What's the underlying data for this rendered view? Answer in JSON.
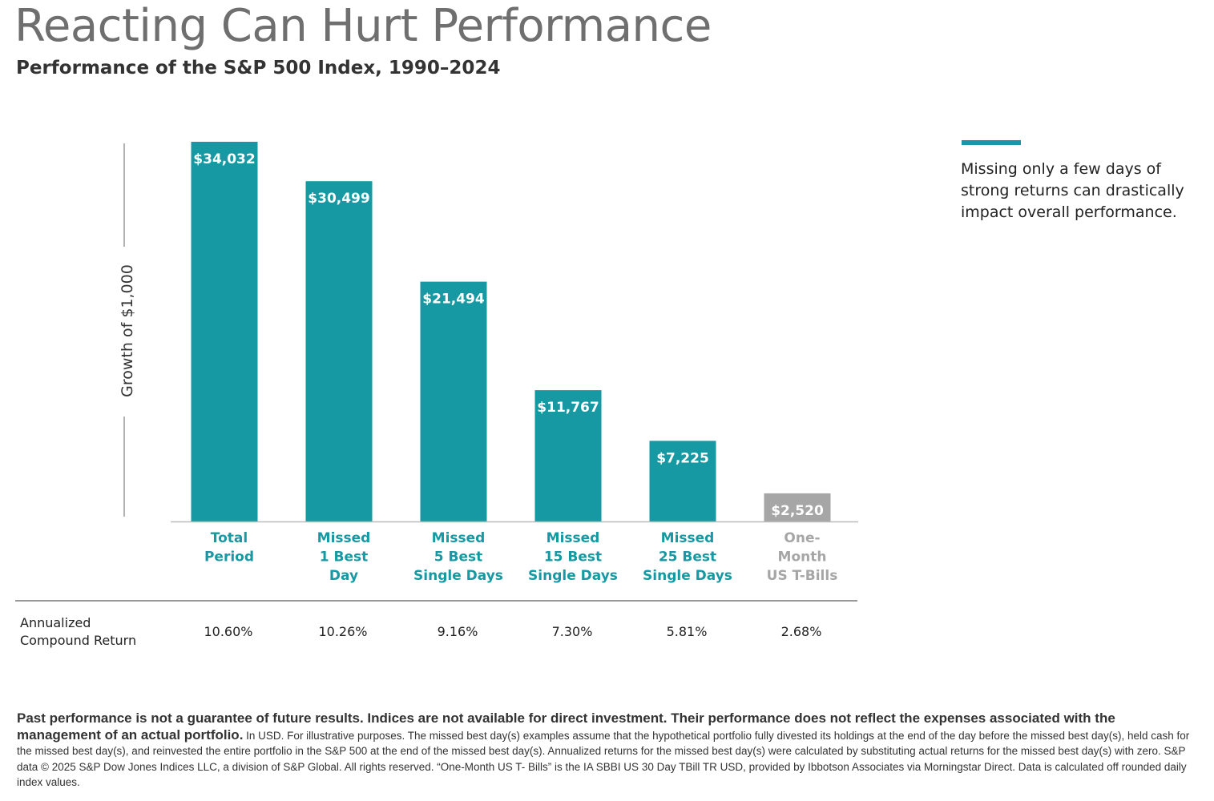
{
  "title": "Reacting Can Hurt Performance",
  "subtitle": "Performance of the S&P 500 Index, 1990–2024",
  "colors": {
    "accent": "#1699a2",
    "muted": "#a6a6a6",
    "axis": "#999999"
  },
  "callout": {
    "text": "Missing only a few days of strong returns can drastically impact overall performance."
  },
  "returns_label": "Annualized Compound Return",
  "footnote": {
    "bold": "Past performance is not a guarantee of future results. Indices are not available for direct investment. Their performance does not reflect the expenses associated with the management of an actual portfolio.",
    "body": " In USD. For illustrative purposes. The missed best day(s) examples assume that the hypothetical portfolio fully divested its holdings at the end of the day before the missed best day(s), held cash for the missed best day(s), and reinvested the entire portfolio in the S&P 500 at the end of the missed best day(s). Annualized returns for the missed best day(s) were calculated by substituting actual returns for the missed best day(s) with zero. S&P data © 2025 S&P Dow Jones Indices LLC, a division of S&P Global. All rights reserved. “One-Month US T- Bills” is the IA SBBI US 30 Day TBill TR USD, provided by Ibbotson Associates via Morningstar Direct. Data is calculated off rounded daily index values."
  },
  "chart_data": {
    "type": "bar",
    "title": "Reacting Can Hurt Performance",
    "subtitle": "Performance of the S&P 500 Index, 1990–2024",
    "ylabel": "Growth of $1,000",
    "xlabel": "",
    "categories": [
      [
        "Total",
        "Period"
      ],
      [
        "Missed",
        "1 Best",
        "Day"
      ],
      [
        "Missed",
        "5 Best",
        "Single Days"
      ],
      [
        "Missed",
        "15 Best",
        "Single Days"
      ],
      [
        "Missed",
        "25 Best",
        "Single Days"
      ],
      [
        "One-",
        "Month",
        "US T-Bills"
      ]
    ],
    "values": [
      34032,
      30499,
      21494,
      11767,
      7225,
      2520
    ],
    "value_labels": [
      "$34,032",
      "$30,499",
      "$21,494",
      "$11,767",
      "$7,225",
      "$2,520"
    ],
    "annualized_returns": [
      "10.60%",
      "10.26%",
      "9.16%",
      "7.30%",
      "5.81%",
      "2.68%"
    ],
    "bar_colors": [
      "#1699a2",
      "#1699a2",
      "#1699a2",
      "#1699a2",
      "#1699a2",
      "#a6a6a6"
    ],
    "ylim": [
      0,
      34032
    ],
    "grid": false,
    "legend": "none"
  }
}
